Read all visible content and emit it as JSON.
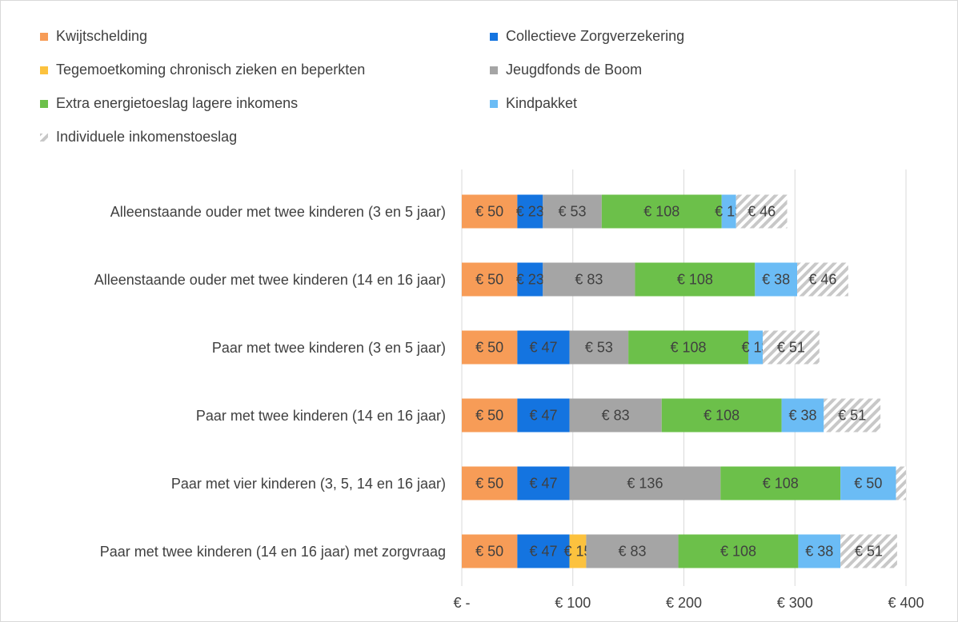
{
  "chart_data": {
    "type": "stacked-bar-horizontal",
    "categories": [
      "Alleenstaande ouder met twee kinderen (3 en 5 jaar)",
      "Alleenstaande ouder met twee kinderen (14 en 16 jaar)",
      "Paar met twee kinderen (3 en 5 jaar)",
      "Paar met twee kinderen (14 en 16 jaar)",
      "Paar met vier kinderen (3, 5, 14 en 16 jaar)",
      "Paar met twee kinderen (14 en 16 jaar) met zorgvraag"
    ],
    "series": [
      {
        "name": "Kwijtschelding",
        "color": "#f79c57",
        "values": [
          50,
          50,
          50,
          50,
          50,
          50
        ],
        "value_labels": [
          "€ 50",
          "€ 50",
          "€ 50",
          "€ 50",
          "€ 50",
          "€ 50"
        ]
      },
      {
        "name": "Collectieve Zorgverzekering",
        "color": "#1474e0",
        "values": [
          23,
          23,
          47,
          47,
          47,
          47
        ],
        "value_labels": [
          "€ 23",
          "€ 23",
          "€ 47",
          "€ 47",
          "€ 47",
          "€ 47"
        ]
      },
      {
        "name": "Tegemoetkoming chronisch zieken en beperkten",
        "color": "#fcc23e",
        "values": [
          null,
          null,
          null,
          null,
          null,
          15
        ],
        "value_labels": [
          null,
          null,
          null,
          null,
          null,
          "€ 15"
        ]
      },
      {
        "name": "Jeugdfonds de Boom",
        "color": "#a5a5a5",
        "values": [
          53,
          83,
          53,
          83,
          136,
          83
        ],
        "value_labels": [
          "€ 53",
          "€ 83",
          "€ 53",
          "€ 83",
          "€ 136",
          "€ 83"
        ]
      },
      {
        "name": "Extra energietoeslag lagere inkomens",
        "color": "#6cc04a",
        "values": [
          108,
          108,
          108,
          108,
          108,
          108
        ],
        "value_labels": [
          "€ 108",
          "€ 108",
          "€ 108",
          "€ 108",
          "€ 108",
          "€ 108"
        ]
      },
      {
        "name": "Kindpakket",
        "color": "#6bbcf5",
        "values": [
          13,
          38,
          13,
          38,
          50,
          38
        ],
        "value_labels": [
          "€ 13",
          "€ 38",
          "€ 13",
          "€ 38",
          "€ 50",
          "€ 38"
        ]
      },
      {
        "name": "Individuele inkomenstoeslag",
        "color": "#c8c8c8",
        "hatch": true,
        "values": [
          46,
          46,
          51,
          51,
          9,
          51
        ],
        "value_labels": [
          "€ 46",
          "€ 46",
          "€ 51",
          "€ 51",
          null,
          "€ 51"
        ]
      }
    ],
    "xlim": [
      0,
      400
    ],
    "xticks": [
      {
        "value": 0,
        "label": "€ -"
      },
      {
        "value": 100,
        "label": "€ 100"
      },
      {
        "value": 200,
        "label": "€ 200"
      },
      {
        "value": 300,
        "label": "€ 300"
      },
      {
        "value": 400,
        "label": "€ 400"
      }
    ],
    "grid": true
  }
}
